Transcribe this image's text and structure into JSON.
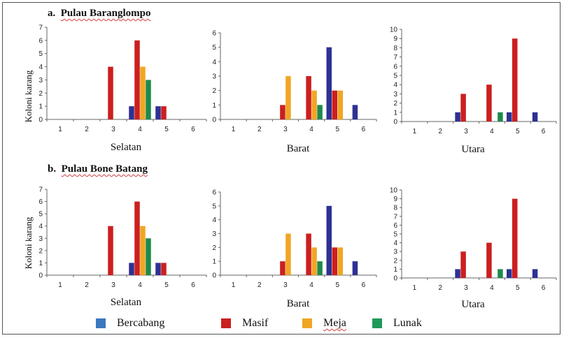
{
  "sections": [
    {
      "title_letter": "a.",
      "title": "Pulau Baranglompo"
    },
    {
      "title_letter": "b.",
      "title": "Pulau Bone Batang"
    }
  ],
  "ylabel": "Koloni karang",
  "colors": {
    "Bercabang": "#2e3192",
    "Masif": "#cc1f1f",
    "Meja": "#f0a624",
    "Lunak": "#1f8a4c"
  },
  "legend": [
    {
      "name": "Bercabang",
      "color": "#3a78c0"
    },
    {
      "name": "Masif",
      "color": "#cc1f1f"
    },
    {
      "name": "Meja",
      "color": "#f0a624"
    },
    {
      "name": "Lunak",
      "color": "#1f9a5a"
    }
  ],
  "chart_data": [
    {
      "type": "bar",
      "section": 0,
      "xlabel": "Selatan",
      "ylim": [
        0,
        7
      ],
      "yticks": [
        0,
        1,
        2,
        3,
        4,
        5,
        6,
        7
      ],
      "categories": [
        "1",
        "2",
        "3",
        "4",
        "5",
        "6"
      ],
      "series": [
        {
          "name": "Bercabang",
          "values": [
            0,
            0,
            0,
            1,
            1,
            0
          ]
        },
        {
          "name": "Masif",
          "values": [
            0,
            0,
            4,
            6,
            1,
            0
          ]
        },
        {
          "name": "Meja",
          "values": [
            0,
            0,
            0,
            4,
            0,
            0
          ]
        },
        {
          "name": "Lunak",
          "values": [
            0,
            0,
            0,
            3,
            0,
            0
          ]
        }
      ]
    },
    {
      "type": "bar",
      "section": 0,
      "xlabel": "Barat",
      "ylim": [
        0,
        6
      ],
      "yticks": [
        0,
        1,
        2,
        3,
        4,
        5,
        6
      ],
      "categories": [
        "1",
        "2",
        "3",
        "4",
        "5",
        "6"
      ],
      "series": [
        {
          "name": "Bercabang",
          "values": [
            0,
            0,
            0,
            0,
            5,
            1
          ]
        },
        {
          "name": "Masif",
          "values": [
            0,
            0,
            1,
            3,
            2,
            0
          ]
        },
        {
          "name": "Meja",
          "values": [
            0,
            0,
            3,
            2,
            2,
            0
          ]
        },
        {
          "name": "Lunak",
          "values": [
            0,
            0,
            0,
            1,
            0,
            0
          ]
        }
      ]
    },
    {
      "type": "bar",
      "section": 0,
      "xlabel": "Utara",
      "ylim": [
        0,
        10
      ],
      "yticks": [
        0,
        1,
        2,
        3,
        4,
        5,
        6,
        7,
        8,
        9,
        10
      ],
      "categories": [
        "1",
        "2",
        "3",
        "4",
        "5",
        "6"
      ],
      "series": [
        {
          "name": "Bercabang",
          "values": [
            0,
            0,
            1,
            0,
            1,
            1
          ]
        },
        {
          "name": "Masif",
          "values": [
            0,
            0,
            3,
            4,
            9,
            0
          ]
        },
        {
          "name": "Meja",
          "values": [
            0,
            0,
            0,
            0,
            0,
            0
          ]
        },
        {
          "name": "Lunak",
          "values": [
            0,
            0,
            0,
            1,
            0,
            0
          ]
        }
      ]
    },
    {
      "type": "bar",
      "section": 1,
      "xlabel": "Selatan",
      "ylim": [
        0,
        7
      ],
      "yticks": [
        0,
        1,
        2,
        3,
        4,
        5,
        6,
        7
      ],
      "categories": [
        "1",
        "2",
        "3",
        "4",
        "5",
        "6"
      ],
      "series": [
        {
          "name": "Bercabang",
          "values": [
            0,
            0,
            0,
            1,
            1,
            0
          ]
        },
        {
          "name": "Masif",
          "values": [
            0,
            0,
            4,
            6,
            1,
            0
          ]
        },
        {
          "name": "Meja",
          "values": [
            0,
            0,
            0,
            4,
            0,
            0
          ]
        },
        {
          "name": "Lunak",
          "values": [
            0,
            0,
            0,
            3,
            0,
            0
          ]
        }
      ]
    },
    {
      "type": "bar",
      "section": 1,
      "xlabel": "Barat",
      "ylim": [
        0,
        6
      ],
      "yticks": [
        0,
        1,
        2,
        3,
        4,
        5,
        6
      ],
      "categories": [
        "1",
        "2",
        "3",
        "4",
        "5",
        "6"
      ],
      "series": [
        {
          "name": "Bercabang",
          "values": [
            0,
            0,
            0,
            0,
            5,
            1
          ]
        },
        {
          "name": "Masif",
          "values": [
            0,
            0,
            1,
            3,
            2,
            0
          ]
        },
        {
          "name": "Meja",
          "values": [
            0,
            0,
            3,
            2,
            2,
            0
          ]
        },
        {
          "name": "Lunak",
          "values": [
            0,
            0,
            0,
            1,
            0,
            0
          ]
        }
      ]
    },
    {
      "type": "bar",
      "section": 1,
      "xlabel": "Utara",
      "ylim": [
        0,
        10
      ],
      "yticks": [
        0,
        1,
        2,
        3,
        4,
        5,
        6,
        7,
        8,
        9,
        10
      ],
      "categories": [
        "1",
        "2",
        "3",
        "4",
        "5",
        "6"
      ],
      "series": [
        {
          "name": "Bercabang",
          "values": [
            0,
            0,
            1,
            0,
            1,
            1
          ]
        },
        {
          "name": "Masif",
          "values": [
            0,
            0,
            3,
            4,
            9,
            0
          ]
        },
        {
          "name": "Meja",
          "values": [
            0,
            0,
            0,
            0,
            0,
            0
          ]
        },
        {
          "name": "Lunak",
          "values": [
            0,
            0,
            0,
            1,
            0,
            0
          ]
        }
      ]
    }
  ]
}
